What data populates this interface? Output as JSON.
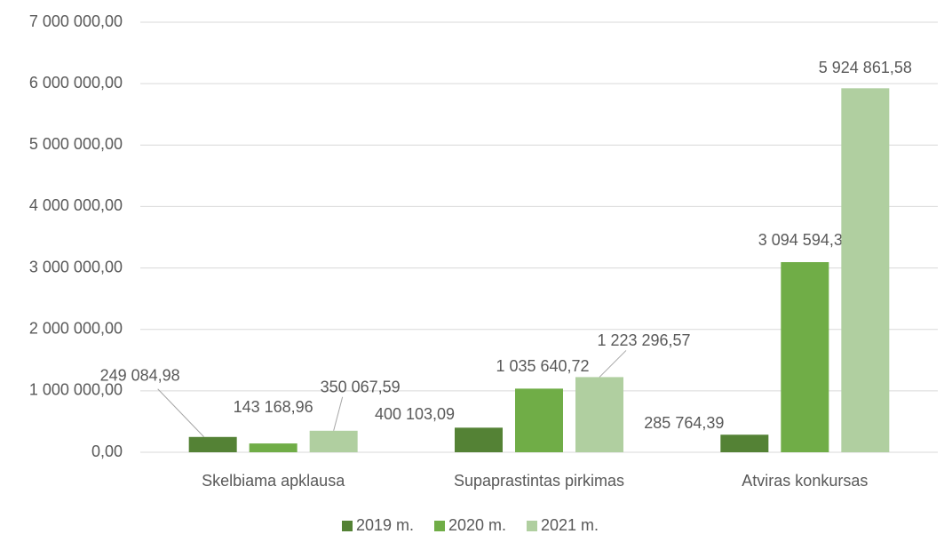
{
  "chart_data": {
    "type": "bar",
    "categories": [
      "Skelbiama apklausa",
      "Supaprastintas pirkimas",
      "Atviras konkursas"
    ],
    "series": [
      {
        "name": "2019 m.",
        "color": "#548235",
        "values": [
          249084.98,
          400103.09,
          285764.39
        ],
        "value_labels": [
          "249 084,98",
          "400 103,09",
          "285 764,39"
        ]
      },
      {
        "name": "2020 m.",
        "color": "#70ad47",
        "values": [
          143168.96,
          1035640.72,
          3094594.3
        ],
        "value_labels": [
          "143 168,96",
          "1 035 640,72",
          "3 094 594,30"
        ]
      },
      {
        "name": "2021 m.",
        "color": "#b0cfa0",
        "values": [
          350067.59,
          1223296.57,
          5924861.58
        ],
        "value_labels": [
          "350 067,59",
          "1 223 296,57",
          "5 924 861,58"
        ]
      }
    ],
    "ylim": [
      0,
      7000000
    ],
    "yticks": [
      {
        "value": 0,
        "label": "0,00"
      },
      {
        "value": 1000000,
        "label": "1 000 000,00"
      },
      {
        "value": 2000000,
        "label": "2 000 000,00"
      },
      {
        "value": 3000000,
        "label": "3 000 000,00"
      },
      {
        "value": 4000000,
        "label": "4 000 000,00"
      },
      {
        "value": 5000000,
        "label": "5 000 000,00"
      },
      {
        "value": 6000000,
        "label": "6 000 000,00"
      },
      {
        "value": 7000000,
        "label": "7 000 000,00"
      }
    ],
    "grid": true,
    "legend": "bottom"
  }
}
